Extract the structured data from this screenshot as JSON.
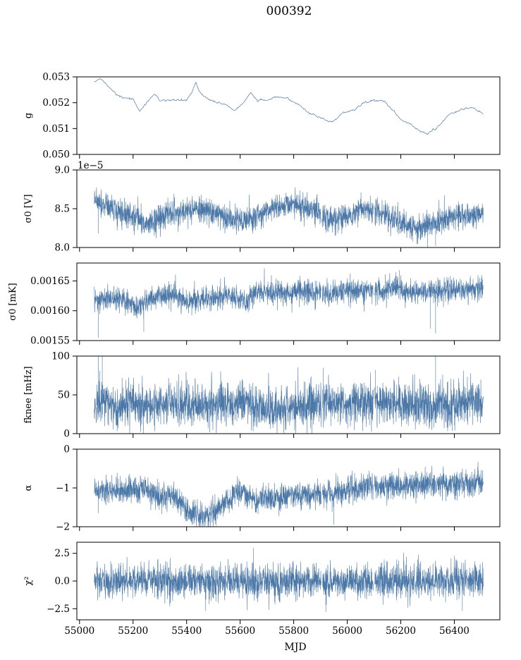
{
  "figure": {
    "title": "000392",
    "xlabel": "MJD"
  },
  "colors": {
    "series": "#4c78a8",
    "axis": "#000000"
  },
  "chart_data": {
    "type": "line",
    "xlim": [
      54990,
      56570
    ],
    "xticks": [
      55000,
      55200,
      55400,
      55600,
      55800,
      56000,
      56200,
      56400
    ],
    "xtick_labels": [
      "55000",
      "55200",
      "55400",
      "55600",
      "55800",
      "56000",
      "56200",
      "56400"
    ],
    "x_range": [
      55055,
      56508
    ],
    "panels": [
      {
        "ylabel": "g",
        "ylim": [
          0.05,
          0.053
        ],
        "yticks": [
          0.05,
          0.051,
          0.052,
          0.053
        ],
        "ytick_labels": [
          "0.050",
          "0.051",
          "0.052",
          "0.053"
        ],
        "offset_text": "",
        "style": "thin",
        "trend": [
          [
            55055,
            0.05278
          ],
          [
            55080,
            0.05295
          ],
          [
            55100,
            0.0527
          ],
          [
            55130,
            0.0524
          ],
          [
            55160,
            0.0522
          ],
          [
            55200,
            0.05215
          ],
          [
            55225,
            0.05165
          ],
          [
            55250,
            0.052
          ],
          [
            55280,
            0.05235
          ],
          [
            55300,
            0.0521
          ],
          [
            55350,
            0.0521
          ],
          [
            55400,
            0.0521
          ],
          [
            55420,
            0.0524
          ],
          [
            55435,
            0.0528
          ],
          [
            55450,
            0.0524
          ],
          [
            55480,
            0.05215
          ],
          [
            55500,
            0.05205
          ],
          [
            55550,
            0.0519
          ],
          [
            55580,
            0.0517
          ],
          [
            55620,
            0.0521
          ],
          [
            55640,
            0.0524
          ],
          [
            55660,
            0.0521
          ],
          [
            55700,
            0.0521
          ],
          [
            55740,
            0.0522
          ],
          [
            55780,
            0.05215
          ],
          [
            55820,
            0.0519
          ],
          [
            55860,
            0.0516
          ],
          [
            55900,
            0.05145
          ],
          [
            55930,
            0.05125
          ],
          [
            55950,
            0.0513
          ],
          [
            55980,
            0.0516
          ],
          [
            56000,
            0.05165
          ],
          [
            56030,
            0.05175
          ],
          [
            56060,
            0.052
          ],
          [
            56100,
            0.0521
          ],
          [
            56140,
            0.05205
          ],
          [
            56160,
            0.0518
          ],
          [
            56180,
            0.0516
          ],
          [
            56200,
            0.05135
          ],
          [
            56230,
            0.0512
          ],
          [
            56260,
            0.051
          ],
          [
            56280,
            0.05085
          ],
          [
            56300,
            0.0508
          ],
          [
            56330,
            0.051
          ],
          [
            56360,
            0.0513
          ],
          [
            56380,
            0.05155
          ],
          [
            56400,
            0.0516
          ],
          [
            56430,
            0.05175
          ],
          [
            56460,
            0.0518
          ],
          [
            56480,
            0.05175
          ],
          [
            56508,
            0.05155
          ]
        ],
        "noise": 4e-05,
        "spikes": []
      },
      {
        "ylabel": "σ0 [V]",
        "ylim": [
          8e-05,
          9e-05
        ],
        "yticks": [
          8e-05,
          8.5e-05,
          9e-05
        ],
        "ytick_labels": [
          "8.0",
          "8.5",
          "9.0"
        ],
        "offset_text": "1e−5",
        "style": "dense",
        "trend": [
          [
            55055,
            8.58e-05
          ],
          [
            55100,
            8.55e-05
          ],
          [
            55150,
            8.45e-05
          ],
          [
            55200,
            8.4e-05
          ],
          [
            55240,
            8.3e-05
          ],
          [
            55300,
            8.4e-05
          ],
          [
            55350,
            8.45e-05
          ],
          [
            55400,
            8.48e-05
          ],
          [
            55450,
            8.5e-05
          ],
          [
            55500,
            8.45e-05
          ],
          [
            55550,
            8.38e-05
          ],
          [
            55600,
            8.33e-05
          ],
          [
            55650,
            8.38e-05
          ],
          [
            55700,
            8.48e-05
          ],
          [
            55750,
            8.53e-05
          ],
          [
            55800,
            8.55e-05
          ],
          [
            55850,
            8.52e-05
          ],
          [
            55900,
            8.43e-05
          ],
          [
            55950,
            8.33e-05
          ],
          [
            56000,
            8.4e-05
          ],
          [
            56050,
            8.48e-05
          ],
          [
            56100,
            8.48e-05
          ],
          [
            56150,
            8.4e-05
          ],
          [
            56200,
            8.33e-05
          ],
          [
            56250,
            8.25e-05
          ],
          [
            56300,
            8.28e-05
          ],
          [
            56350,
            8.35e-05
          ],
          [
            56400,
            8.4e-05
          ],
          [
            56450,
            8.42e-05
          ],
          [
            56508,
            8.43e-05
          ]
        ],
        "noise": 8.5e-07,
        "spikes": [
          [
            55070,
            8.18e-05
          ],
          [
            55250,
            8.22e-05
          ],
          [
            55930,
            8.2e-05
          ],
          [
            56300,
            8e-05
          ],
          [
            56330,
            8.02e-05
          ],
          [
            56245,
            8.08e-05
          ]
        ]
      },
      {
        "ylabel": "σ0 [mK]",
        "ylim": [
          0.00155,
          0.00168
        ],
        "yticks": [
          0.00155,
          0.0016,
          0.00165
        ],
        "ytick_labels": [
          "0.00155",
          "0.00160",
          "0.00165"
        ],
        "offset_text": "",
        "style": "dense",
        "trend": [
          [
            55055,
            0.00162
          ],
          [
            55100,
            0.00162
          ],
          [
            55150,
            0.00162
          ],
          [
            55220,
            0.001605
          ],
          [
            55250,
            0.001615
          ],
          [
            55300,
            0.001625
          ],
          [
            55360,
            0.001625
          ],
          [
            55400,
            0.001615
          ],
          [
            55450,
            0.00162
          ],
          [
            55500,
            0.00162
          ],
          [
            55550,
            0.001625
          ],
          [
            55620,
            0.001615
          ],
          [
            55650,
            0.00163
          ],
          [
            55700,
            0.001632
          ],
          [
            55800,
            0.001632
          ],
          [
            55900,
            0.001632
          ],
          [
            55950,
            0.00163
          ],
          [
            56000,
            0.001635
          ],
          [
            56100,
            0.001632
          ],
          [
            56150,
            0.001635
          ],
          [
            56180,
            0.001645
          ],
          [
            56220,
            0.001632
          ],
          [
            56300,
            0.00163
          ],
          [
            56400,
            0.001635
          ],
          [
            56508,
            0.001637
          ]
        ],
        "noise": 1e-05,
        "spikes": [
          [
            55070,
            0.001555
          ],
          [
            55240,
            0.001565
          ],
          [
            56330,
            0.001562
          ],
          [
            56310,
            0.00157
          ],
          [
            56195,
            0.001668
          ]
        ]
      },
      {
        "ylabel": "fknee [mHz]",
        "ylim": [
          0,
          100
        ],
        "yticks": [
          0,
          50,
          100
        ],
        "ytick_labels": [
          "0",
          "50",
          "100"
        ],
        "offset_text": "",
        "style": "dense",
        "trend": [
          [
            55055,
            40
          ],
          [
            55150,
            38
          ],
          [
            55250,
            37
          ],
          [
            55300,
            40
          ],
          [
            55400,
            38
          ],
          [
            55450,
            40
          ],
          [
            55550,
            37
          ],
          [
            55620,
            42
          ],
          [
            55700,
            35
          ],
          [
            55760,
            30
          ],
          [
            55850,
            35
          ],
          [
            55900,
            38
          ],
          [
            56000,
            38
          ],
          [
            56100,
            40
          ],
          [
            56200,
            38
          ],
          [
            56300,
            38
          ],
          [
            56400,
            38
          ],
          [
            56508,
            40
          ]
        ],
        "noise": 14,
        "spikes": [
          [
            55070,
            100
          ],
          [
            55085,
            100
          ],
          [
            56330,
            100
          ],
          [
            55910,
            85
          ],
          [
            56105,
            82
          ]
        ]
      },
      {
        "ylabel": "α",
        "ylim": [
          -2,
          0
        ],
        "yticks": [
          -2,
          -1,
          0
        ],
        "ytick_labels": [
          "−2",
          "−1",
          "0"
        ],
        "offset_text": "",
        "style": "dense",
        "trend": [
          [
            55055,
            -1.05
          ],
          [
            55150,
            -1.05
          ],
          [
            55250,
            -1.05
          ],
          [
            55300,
            -1.3
          ],
          [
            55340,
            -1.2
          ],
          [
            55380,
            -1.35
          ],
          [
            55400,
            -1.6
          ],
          [
            55450,
            -1.75
          ],
          [
            55480,
            -1.7
          ],
          [
            55520,
            -1.5
          ],
          [
            55560,
            -1.25
          ],
          [
            55600,
            -1.05
          ],
          [
            55650,
            -1.35
          ],
          [
            55700,
            -1.25
          ],
          [
            55750,
            -1.25
          ],
          [
            55800,
            -1.15
          ],
          [
            55850,
            -1.2
          ],
          [
            55900,
            -1.15
          ],
          [
            55950,
            -1.1
          ],
          [
            56000,
            -1.05
          ],
          [
            56100,
            -0.95
          ],
          [
            56200,
            -0.95
          ],
          [
            56300,
            -0.9
          ],
          [
            56400,
            -0.9
          ],
          [
            56508,
            -0.85
          ]
        ],
        "noise": 0.17,
        "spikes": [
          [
            55070,
            -1.65
          ],
          [
            55950,
            -1.95
          ],
          [
            55510,
            -1.97
          ]
        ]
      },
      {
        "ylabel": "χ²",
        "ylim": [
          -3.5,
          3.5
        ],
        "yticks": [
          -2.5,
          0.0,
          2.5
        ],
        "ytick_labels": [
          "−2.5",
          "0.0",
          "2.5"
        ],
        "offset_text": "",
        "style": "dense",
        "trend": [
          [
            55055,
            0.05
          ],
          [
            55450,
            0.0
          ],
          [
            55500,
            -0.1
          ],
          [
            56000,
            0.0
          ],
          [
            56508,
            0.0
          ]
        ],
        "noise": 0.75,
        "spikes": [
          [
            55650,
            3.0
          ],
          [
            55470,
            -2.7
          ],
          [
            55920,
            -2.8
          ],
          [
            56430,
            -2.7
          ]
        ]
      }
    ]
  }
}
